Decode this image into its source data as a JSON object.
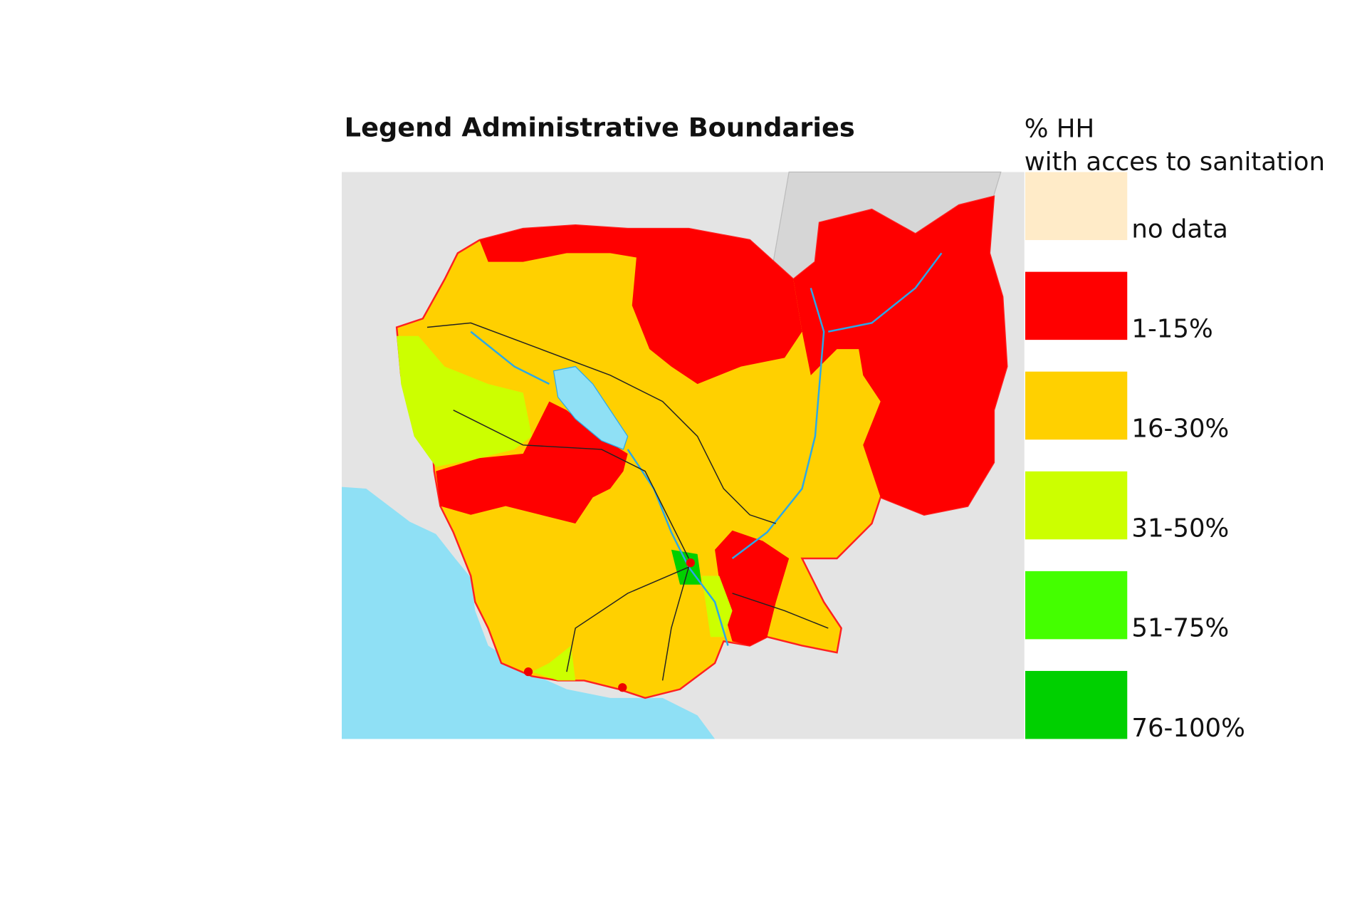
{
  "title": "Legend Administrative Boundaries",
  "legend": {
    "title": "% HH",
    "subtitle": "with acces to sanitation",
    "items": [
      {
        "label": "no data",
        "color": "#ffebc8"
      },
      {
        "label": "1-15%",
        "color": "#ff0000"
      },
      {
        "label": "16-30%",
        "color": "#ffd000"
      },
      {
        "label": "31-50%",
        "color": "#ccff00"
      },
      {
        "label": "51-75%",
        "color": "#44ff00"
      },
      {
        "label": "76-100%",
        "color": "#00d000"
      }
    ]
  }
}
